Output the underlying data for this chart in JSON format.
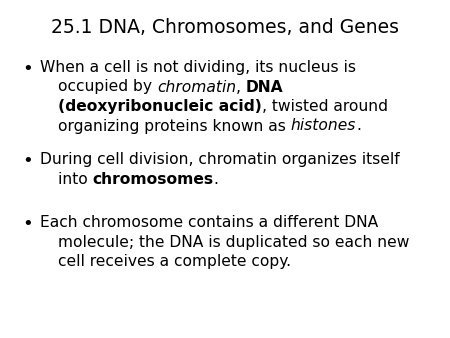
{
  "title": "25.1 DNA, Chromosomes, and Genes",
  "background_color": "#ffffff",
  "title_fontsize": 13.5,
  "text_fontsize": 11.2,
  "bullet_symbol": "•",
  "bullet_lines": [
    [
      {
        "text": "When a cell is not dividing, its nucleus is",
        "style": "normal"
      },
      {
        "text": "occupied by ",
        "style": "normal"
      },
      {
        "text": "chromatin",
        "style": "italic"
      },
      {
        "text": ", ",
        "style": "normal"
      },
      {
        "text": "DNA",
        "style": "bold"
      },
      {
        "text": "(deoxyribonucleic acid)",
        "style": "bold"
      },
      {
        "text": ", twisted around",
        "style": "normal"
      },
      {
        "text": "organizing proteins known as ",
        "style": "normal"
      },
      {
        "text": "histones",
        "style": "italic"
      },
      {
        "text": ".",
        "style": "normal"
      }
    ],
    [
      {
        "text": "During cell division, chromatin organizes itself",
        "style": "normal"
      },
      {
        "text": "into ",
        "style": "normal"
      },
      {
        "text": "chromosomes",
        "style": "bold"
      },
      {
        "text": ".",
        "style": "normal"
      }
    ],
    [
      {
        "text": "Each chromosome contains a different DNA",
        "style": "normal"
      },
      {
        "text": "molecule; the DNA is duplicated so each new",
        "style": "normal"
      },
      {
        "text": "cell receives a complete copy.",
        "style": "normal"
      }
    ]
  ],
  "line_structure": [
    [
      0,
      1,
      2,
      3,
      4
    ],
    [
      5,
      6,
      7
    ],
    [
      8,
      9,
      10
    ],
    [
      11,
      12,
      13
    ],
    [
      14,
      15
    ],
    [
      16,
      17,
      18
    ]
  ]
}
